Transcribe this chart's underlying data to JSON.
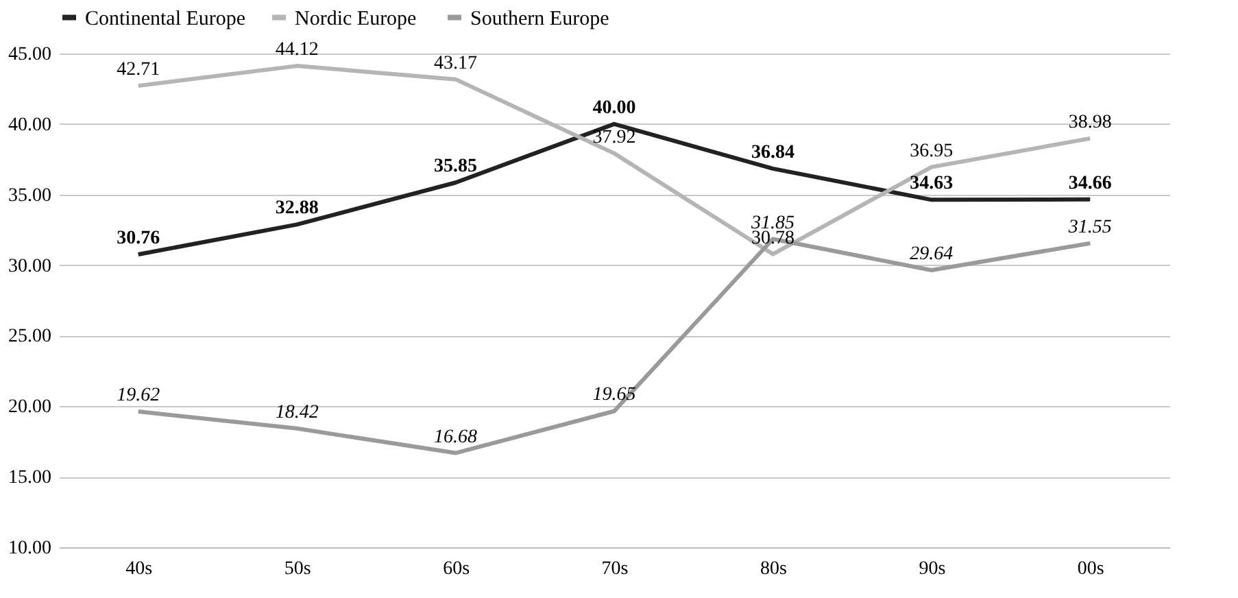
{
  "chart_data": {
    "type": "line",
    "categories": [
      "40s",
      "50s",
      "60s",
      "70s",
      "80s",
      "90s",
      "00s"
    ],
    "series": [
      {
        "name": "Continental Europe",
        "color": "#222222",
        "values": [
          30.76,
          32.88,
          35.85,
          40.0,
          36.84,
          34.63,
          34.66
        ],
        "value_labels": [
          "30.76",
          "32.88",
          "35.85",
          "40.00",
          "36.84",
          "34.63",
          "34.66"
        ]
      },
      {
        "name": "Nordic  Europe",
        "color": "#b5b5b5",
        "values": [
          42.71,
          44.12,
          43.17,
          37.92,
          30.78,
          36.95,
          38.98
        ],
        "value_labels": [
          "42.71",
          "44.12",
          "43.17",
          "37.92",
          "30.78",
          "36.95",
          "38.98"
        ]
      },
      {
        "name": "Southern Europe",
        "color": "#9a9a9a",
        "values": [
          19.62,
          18.42,
          16.68,
          19.65,
          31.85,
          29.64,
          31.55
        ],
        "value_labels": [
          "19.62",
          "18.42",
          "16.68",
          "19.65",
          "31.85",
          "29.64",
          "31.55"
        ]
      }
    ],
    "ylim": [
      10,
      45
    ],
    "yticks": [
      {
        "value": 10,
        "label": "10.00"
      },
      {
        "value": 15,
        "label": "15.00"
      },
      {
        "value": 20,
        "label": "20.00"
      },
      {
        "value": 25,
        "label": "25.00"
      },
      {
        "value": 30,
        "label": "30.00"
      },
      {
        "value": 35,
        "label": "35.00"
      },
      {
        "value": 40,
        "label": "40.00"
      },
      {
        "value": 45,
        "label": "45.00"
      }
    ],
    "grid": "y",
    "legend": "top"
  }
}
